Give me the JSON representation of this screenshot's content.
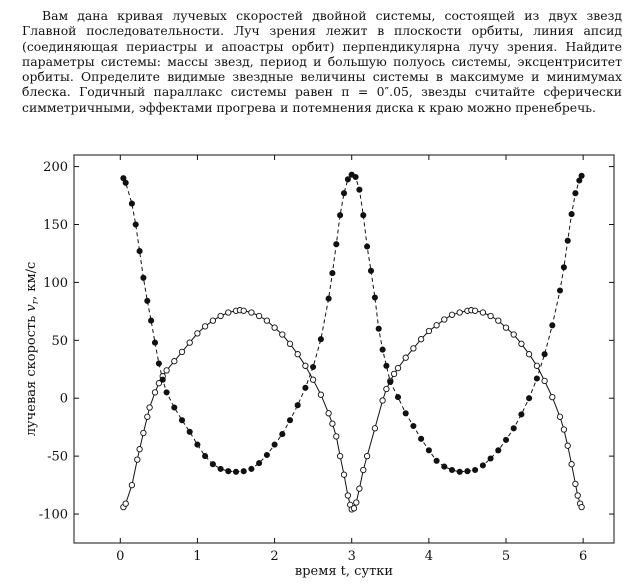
{
  "problem": {
    "text": "Вам дана кривая лучевых скоростей двойной системы, состоящей из двух звезд Главной последовательности. Луч зрения лежит в плоскости орбиты, линия апсид (соединяющая периастры и апоастры орбит) перпендикулярна лучу зрения. Найдите параметры системы: массы звезд, период и большую полуось системы, эксцентриситет орбиты. Определите видимые звездные величины системы в максимуме и минимумах блеска. Годичный параллакс системы равен π = 0″.05, звезды считайте сферически симметричными, эффектами прогрева и потемнения диска к краю можно пренебречь."
  },
  "chart_data": {
    "type": "scatter",
    "title": "",
    "xlabel": "время t, сутки",
    "ylabel": "лучевая скорость v_r, км/с",
    "xlim": [
      -0.6,
      6.4
    ],
    "ylim": [
      -125,
      210
    ],
    "xticks": [
      0,
      1,
      2,
      3,
      4,
      5,
      6
    ],
    "yticks": [
      -100,
      -50,
      0,
      50,
      100,
      150,
      200
    ],
    "grid": false,
    "legend": "none",
    "series": [
      {
        "style": "open-circles-solid-line",
        "color": "#111111",
        "points": [
          [
            0.04,
            -94
          ],
          [
            0.07,
            -91
          ],
          [
            0.15,
            -75
          ],
          [
            0.22,
            -53
          ],
          [
            0.25,
            -44
          ],
          [
            0.3,
            -30
          ],
          [
            0.35,
            -16
          ],
          [
            0.38,
            -8
          ],
          [
            0.45,
            5
          ],
          [
            0.5,
            13
          ],
          [
            0.55,
            19
          ],
          [
            0.6,
            24
          ],
          [
            0.7,
            32
          ],
          [
            0.8,
            40
          ],
          [
            0.9,
            48
          ],
          [
            1.0,
            56
          ],
          [
            1.1,
            62
          ],
          [
            1.2,
            67
          ],
          [
            1.3,
            71
          ],
          [
            1.4,
            74
          ],
          [
            1.5,
            75.5
          ],
          [
            1.55,
            76
          ],
          [
            1.6,
            75.5
          ],
          [
            1.7,
            74
          ],
          [
            1.8,
            71
          ],
          [
            1.9,
            67
          ],
          [
            2.0,
            61
          ],
          [
            2.1,
            55
          ],
          [
            2.2,
            47
          ],
          [
            2.3,
            38
          ],
          [
            2.4,
            28
          ],
          [
            2.5,
            16
          ],
          [
            2.6,
            3
          ],
          [
            2.7,
            -13
          ],
          [
            2.75,
            -22
          ],
          [
            2.8,
            -33
          ],
          [
            2.85,
            -50
          ],
          [
            2.9,
            -66
          ],
          [
            2.95,
            -84
          ],
          [
            2.98,
            -92
          ],
          [
            3.0,
            -96
          ],
          [
            3.03,
            -95
          ],
          [
            3.06,
            -90
          ],
          [
            3.1,
            -78
          ],
          [
            3.15,
            -62
          ],
          [
            3.2,
            -50
          ],
          [
            3.3,
            -26
          ],
          [
            3.4,
            -2
          ],
          [
            3.45,
            8
          ],
          [
            3.5,
            15
          ],
          [
            3.55,
            21
          ],
          [
            3.6,
            26
          ],
          [
            3.7,
            35
          ],
          [
            3.8,
            43
          ],
          [
            3.9,
            51
          ],
          [
            4.0,
            58
          ],
          [
            4.1,
            63
          ],
          [
            4.2,
            68
          ],
          [
            4.3,
            72
          ],
          [
            4.4,
            74
          ],
          [
            4.5,
            75.5
          ],
          [
            4.55,
            76
          ],
          [
            4.6,
            75.5
          ],
          [
            4.7,
            74
          ],
          [
            4.8,
            71
          ],
          [
            4.9,
            67
          ],
          [
            5.0,
            61
          ],
          [
            5.1,
            55
          ],
          [
            5.2,
            47
          ],
          [
            5.3,
            38
          ],
          [
            5.4,
            28
          ],
          [
            5.5,
            15
          ],
          [
            5.6,
            1
          ],
          [
            5.7,
            -16
          ],
          [
            5.75,
            -27
          ],
          [
            5.8,
            -41
          ],
          [
            5.85,
            -57
          ],
          [
            5.9,
            -74
          ],
          [
            5.93,
            -84
          ],
          [
            5.96,
            -91
          ],
          [
            5.98,
            -94
          ]
        ]
      },
      {
        "style": "filled-circles-dashed-line",
        "color": "#111111",
        "points": [
          [
            0.04,
            190
          ],
          [
            0.07,
            186
          ],
          [
            0.15,
            168
          ],
          [
            0.2,
            150
          ],
          [
            0.25,
            127
          ],
          [
            0.3,
            104
          ],
          [
            0.35,
            84
          ],
          [
            0.4,
            67
          ],
          [
            0.45,
            48
          ],
          [
            0.5,
            30
          ],
          [
            0.55,
            16
          ],
          [
            0.6,
            5
          ],
          [
            0.7,
            -8
          ],
          [
            0.8,
            -19
          ],
          [
            0.9,
            -29
          ],
          [
            1.0,
            -40
          ],
          [
            1.1,
            -50
          ],
          [
            1.2,
            -57
          ],
          [
            1.3,
            -61
          ],
          [
            1.4,
            -63
          ],
          [
            1.5,
            -63.5
          ],
          [
            1.6,
            -63
          ],
          [
            1.7,
            -61
          ],
          [
            1.8,
            -56
          ],
          [
            1.9,
            -49
          ],
          [
            2.0,
            -40
          ],
          [
            2.1,
            -31
          ],
          [
            2.2,
            -19
          ],
          [
            2.3,
            -6
          ],
          [
            2.4,
            9
          ],
          [
            2.5,
            27
          ],
          [
            2.6,
            51
          ],
          [
            2.7,
            86
          ],
          [
            2.75,
            108
          ],
          [
            2.8,
            133
          ],
          [
            2.85,
            158
          ],
          [
            2.9,
            177
          ],
          [
            2.95,
            189
          ],
          [
            3.0,
            193
          ],
          [
            3.05,
            191
          ],
          [
            3.1,
            180
          ],
          [
            3.15,
            158
          ],
          [
            3.2,
            131
          ],
          [
            3.25,
            110
          ],
          [
            3.3,
            87
          ],
          [
            3.35,
            60
          ],
          [
            3.4,
            42
          ],
          [
            3.45,
            28
          ],
          [
            3.5,
            14
          ],
          [
            3.6,
            1
          ],
          [
            3.7,
            -13
          ],
          [
            3.8,
            -24
          ],
          [
            3.9,
            -35
          ],
          [
            4.0,
            -45
          ],
          [
            4.1,
            -54
          ],
          [
            4.2,
            -59
          ],
          [
            4.3,
            -62
          ],
          [
            4.4,
            -63.5
          ],
          [
            4.5,
            -63
          ],
          [
            4.6,
            -62
          ],
          [
            4.7,
            -58
          ],
          [
            4.8,
            -52
          ],
          [
            4.9,
            -45
          ],
          [
            5.0,
            -36
          ],
          [
            5.1,
            -26
          ],
          [
            5.2,
            -14
          ],
          [
            5.3,
            0
          ],
          [
            5.4,
            17
          ],
          [
            5.5,
            38
          ],
          [
            5.6,
            63
          ],
          [
            5.7,
            93
          ],
          [
            5.75,
            113
          ],
          [
            5.8,
            136
          ],
          [
            5.85,
            159
          ],
          [
            5.9,
            177
          ],
          [
            5.95,
            188
          ],
          [
            5.98,
            192
          ]
        ]
      }
    ]
  }
}
